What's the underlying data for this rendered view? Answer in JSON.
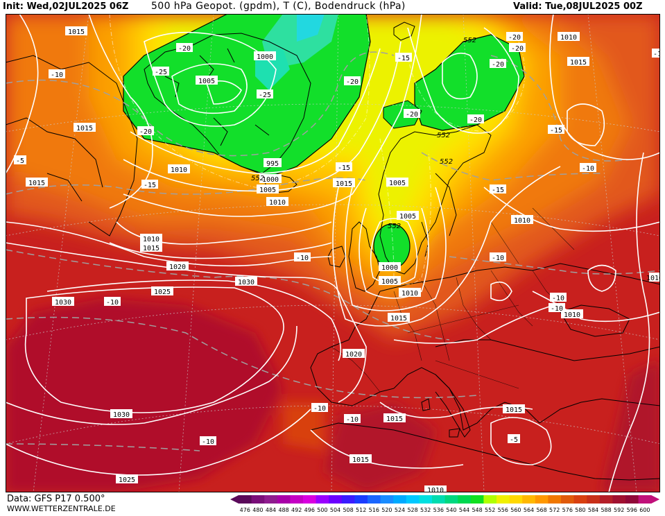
{
  "header": {
    "init": "Init: Wed,02JUL2025 06Z",
    "title": "500 hPa Geopot. (gpdm), T (C), Bodendruck (hPa)",
    "valid": "Valid: Tue,08JUL2025 00Z"
  },
  "footer": {
    "source": "Data: GFS P17 0.500°",
    "site": "WWW.WETTERZENTRALE.DE"
  },
  "legend": {
    "values": [
      "476",
      "480",
      "484",
      "488",
      "492",
      "496",
      "500",
      "504",
      "508",
      "512",
      "516",
      "520",
      "524",
      "528",
      "532",
      "536",
      "540",
      "544",
      "548",
      "552",
      "556",
      "560",
      "564",
      "568",
      "572",
      "576",
      "580",
      "584",
      "588",
      "592",
      "596",
      "600"
    ],
    "colors": [
      "#5a0a5a",
      "#7a0f7a",
      "#8f1c8f",
      "#a800a8",
      "#c400c4",
      "#d800e0",
      "#9900ff",
      "#6a00ff",
      "#3a1cff",
      "#1a3cff",
      "#1a66ff",
      "#1a8cff",
      "#00aaff",
      "#00c8ff",
      "#00e0e0",
      "#00dcb0",
      "#00d880",
      "#00d850",
      "#10e020",
      "#b0ff00",
      "#f0f000",
      "#ffd800",
      "#ffb800",
      "#ff9800",
      "#f07800",
      "#e05a0a",
      "#d84010",
      "#c83018",
      "#b41e28",
      "#a01030",
      "#900838",
      "#c0107a"
    ]
  },
  "isobars": [
    {
      "value": "1015",
      "ref": "b1"
    },
    {
      "value": "1015",
      "ref": "b2"
    },
    {
      "value": "1015",
      "ref": "b3"
    },
    {
      "value": "1010",
      "ref": "b4"
    },
    {
      "value": "1010",
      "ref": "b5"
    },
    {
      "value": "1015",
      "ref": "b6"
    },
    {
      "value": "1005",
      "ref": "b7"
    },
    {
      "value": "1000",
      "ref": "b8"
    },
    {
      "value": "1005",
      "ref": "b9"
    },
    {
      "value": "1000",
      "ref": "b10"
    },
    {
      "value": "995",
      "ref": "b11"
    },
    {
      "value": "1005",
      "ref": "b12"
    },
    {
      "value": "1010",
      "ref": "b13"
    },
    {
      "value": "1015",
      "ref": "b14"
    },
    {
      "value": "1005",
      "ref": "b15"
    },
    {
      "value": "1010",
      "ref": "b16"
    },
    {
      "value": "1015",
      "ref": "b17"
    },
    {
      "value": "1020",
      "ref": "b18"
    },
    {
      "value": "1025",
      "ref": "b19"
    },
    {
      "value": "1030",
      "ref": "b20"
    },
    {
      "value": "1030",
      "ref": "b21"
    },
    {
      "value": "1000",
      "ref": "b22"
    },
    {
      "value": "1005",
      "ref": "b23"
    },
    {
      "value": "1010",
      "ref": "b24"
    },
    {
      "value": "1015",
      "ref": "b25"
    },
    {
      "value": "1020",
      "ref": "b26"
    },
    {
      "value": "1030",
      "ref": "b27"
    },
    {
      "value": "1025",
      "ref": "b28"
    },
    {
      "value": "1015",
      "ref": "b29"
    },
    {
      "value": "1015",
      "ref": "b30"
    },
    {
      "value": "1015",
      "ref": "b31"
    },
    {
      "value": "1010",
      "ref": "b32"
    },
    {
      "value": "1010",
      "ref": "b33"
    },
    {
      "value": "1010",
      "ref": "b34"
    },
    {
      "value": "1010",
      "ref": "b35"
    },
    {
      "value": "1015",
      "ref": "b36"
    },
    {
      "value": "1010",
      "ref": "b37"
    }
  ],
  "temperatures": [
    {
      "value": "-10",
      "ref": "t1"
    },
    {
      "value": "-20",
      "ref": "t2"
    },
    {
      "value": "-25",
      "ref": "t3"
    },
    {
      "value": "-20",
      "ref": "t4"
    },
    {
      "value": "-25",
      "ref": "t5"
    },
    {
      "value": "-20",
      "ref": "t6"
    },
    {
      "value": "-15",
      "ref": "t7"
    },
    {
      "value": "-20",
      "ref": "t8"
    },
    {
      "value": "-20",
      "ref": "t9"
    },
    {
      "value": "-5",
      "ref": "t10"
    },
    {
      "value": "-15",
      "ref": "t11"
    },
    {
      "value": "-15",
      "ref": "t12"
    },
    {
      "value": "-20",
      "ref": "t13"
    },
    {
      "value": "-20",
      "ref": "t14"
    },
    {
      "value": "-15",
      "ref": "t15"
    },
    {
      "value": "-15",
      "ref": "t16"
    },
    {
      "value": "-10",
      "ref": "t17"
    },
    {
      "value": "-10",
      "ref": "t18"
    },
    {
      "value": "-10",
      "ref": "t19"
    },
    {
      "value": "-10",
      "ref": "t20"
    },
    {
      "value": "-10",
      "ref": "t21"
    },
    {
      "value": "-10",
      "ref": "t22"
    },
    {
      "value": "-10",
      "ref": "t23"
    },
    {
      "value": "-10",
      "ref": "t24"
    },
    {
      "value": "-5",
      "ref": "t25"
    },
    {
      "value": "-15",
      "ref": "t26"
    },
    {
      "value": "-20",
      "ref": "t27"
    },
    {
      "value": "-25",
      "ref": "t28"
    },
    {
      "value": "-25",
      "ref": "t29"
    },
    {
      "value": "-10",
      "ref": "t30"
    },
    {
      "value": "-1",
      "ref": "t31"
    }
  ],
  "geopotential": [
    {
      "value": "552",
      "ref": "g1"
    },
    {
      "value": "552",
      "ref": "g2"
    },
    {
      "value": "552",
      "ref": "g3"
    },
    {
      "value": "552",
      "ref": "g4"
    },
    {
      "value": "552",
      "ref": "g5"
    }
  ]
}
